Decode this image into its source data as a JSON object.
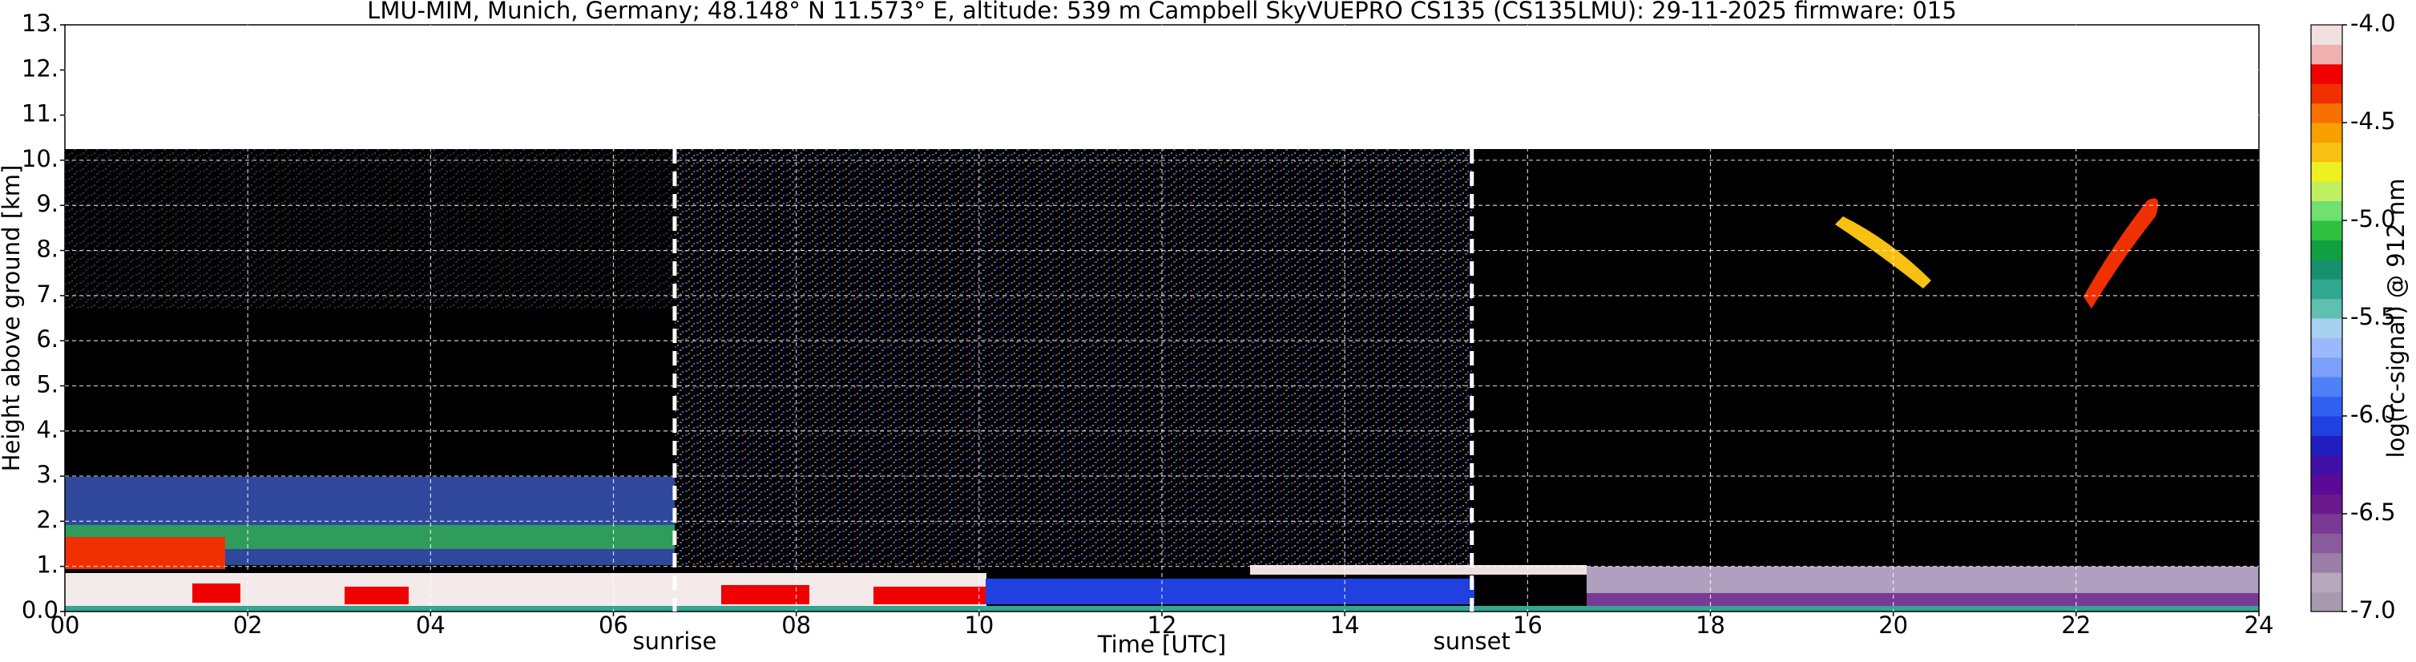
{
  "chart_data": {
    "type": "heatmap",
    "title": "LMU-MIM, Munich, Germany; 48.148° N 11.573° E, altitude: 539 m    Campbell SkyVUEPRO CS135 (CS135LMU): 29-11-2025    firmware: 015",
    "x_label": "Time [UTC]",
    "y_label": "Height above ground [km]",
    "xlim": [
      0,
      24
    ],
    "xticks": [
      {
        "value": 0,
        "label": "00"
      },
      {
        "value": 2,
        "label": "02"
      },
      {
        "value": 4,
        "label": "04"
      },
      {
        "value": 6,
        "label": "06"
      },
      {
        "value": 8,
        "label": "08"
      },
      10,
      12,
      14,
      16,
      18,
      20,
      22,
      24
    ],
    "ylim": [
      0,
      13
    ],
    "yticks": [
      {
        "value": 0,
        "label": "0.0"
      },
      {
        "value": 1,
        "label": "1."
      },
      {
        "value": 2,
        "label": "2."
      },
      {
        "value": 3,
        "label": "3."
      },
      {
        "value": 4,
        "label": "4."
      },
      {
        "value": 5,
        "label": "5."
      },
      {
        "value": 6,
        "label": "6."
      },
      {
        "value": 7,
        "label": "7."
      },
      {
        "value": 8,
        "label": "8."
      },
      {
        "value": 9,
        "label": "9."
      },
      {
        "value": 10,
        "label": "10."
      },
      {
        "value": 11,
        "label": "11."
      },
      {
        "value": 12,
        "label": "12."
      },
      {
        "value": 13,
        "label": "13."
      }
    ],
    "grid": true,
    "annotations": [
      {
        "text": "sunrise",
        "x": 6.67
      },
      {
        "text": "sunset",
        "x": 15.39
      }
    ],
    "colorbar": {
      "label": "log(rc-signal) @ 912 nm",
      "lim": [
        -7,
        -4
      ],
      "ticks": [
        {
          "value": -7,
          "label": "-7.0"
        },
        -6.5,
        {
          "value": -6,
          "label": "-6.0"
        },
        -5.5,
        {
          "value": -5,
          "label": "-5.0"
        },
        -4.5,
        {
          "value": -4,
          "label": "-4.0"
        }
      ],
      "colors": [
        "#a89aae",
        "#b8a8bc",
        "#9c7fa8",
        "#8a5c9c",
        "#7a3a94",
        "#6a1a8c",
        "#5a0a96",
        "#4010a8",
        "#2020c0",
        "#2040e0",
        "#3060f0",
        "#5080f8",
        "#7aa0fa",
        "#9cb8fc",
        "#a8d0f0",
        "#60c0b0",
        "#30a890",
        "#189070",
        "#10a040",
        "#30c040",
        "#70e070",
        "#c0f060",
        "#f0f020",
        "#f8c010",
        "#f8a000",
        "#f87000",
        "#f03000",
        "#f00000",
        "#f0b0b0",
        "#f0e0e0"
      ]
    }
  }
}
